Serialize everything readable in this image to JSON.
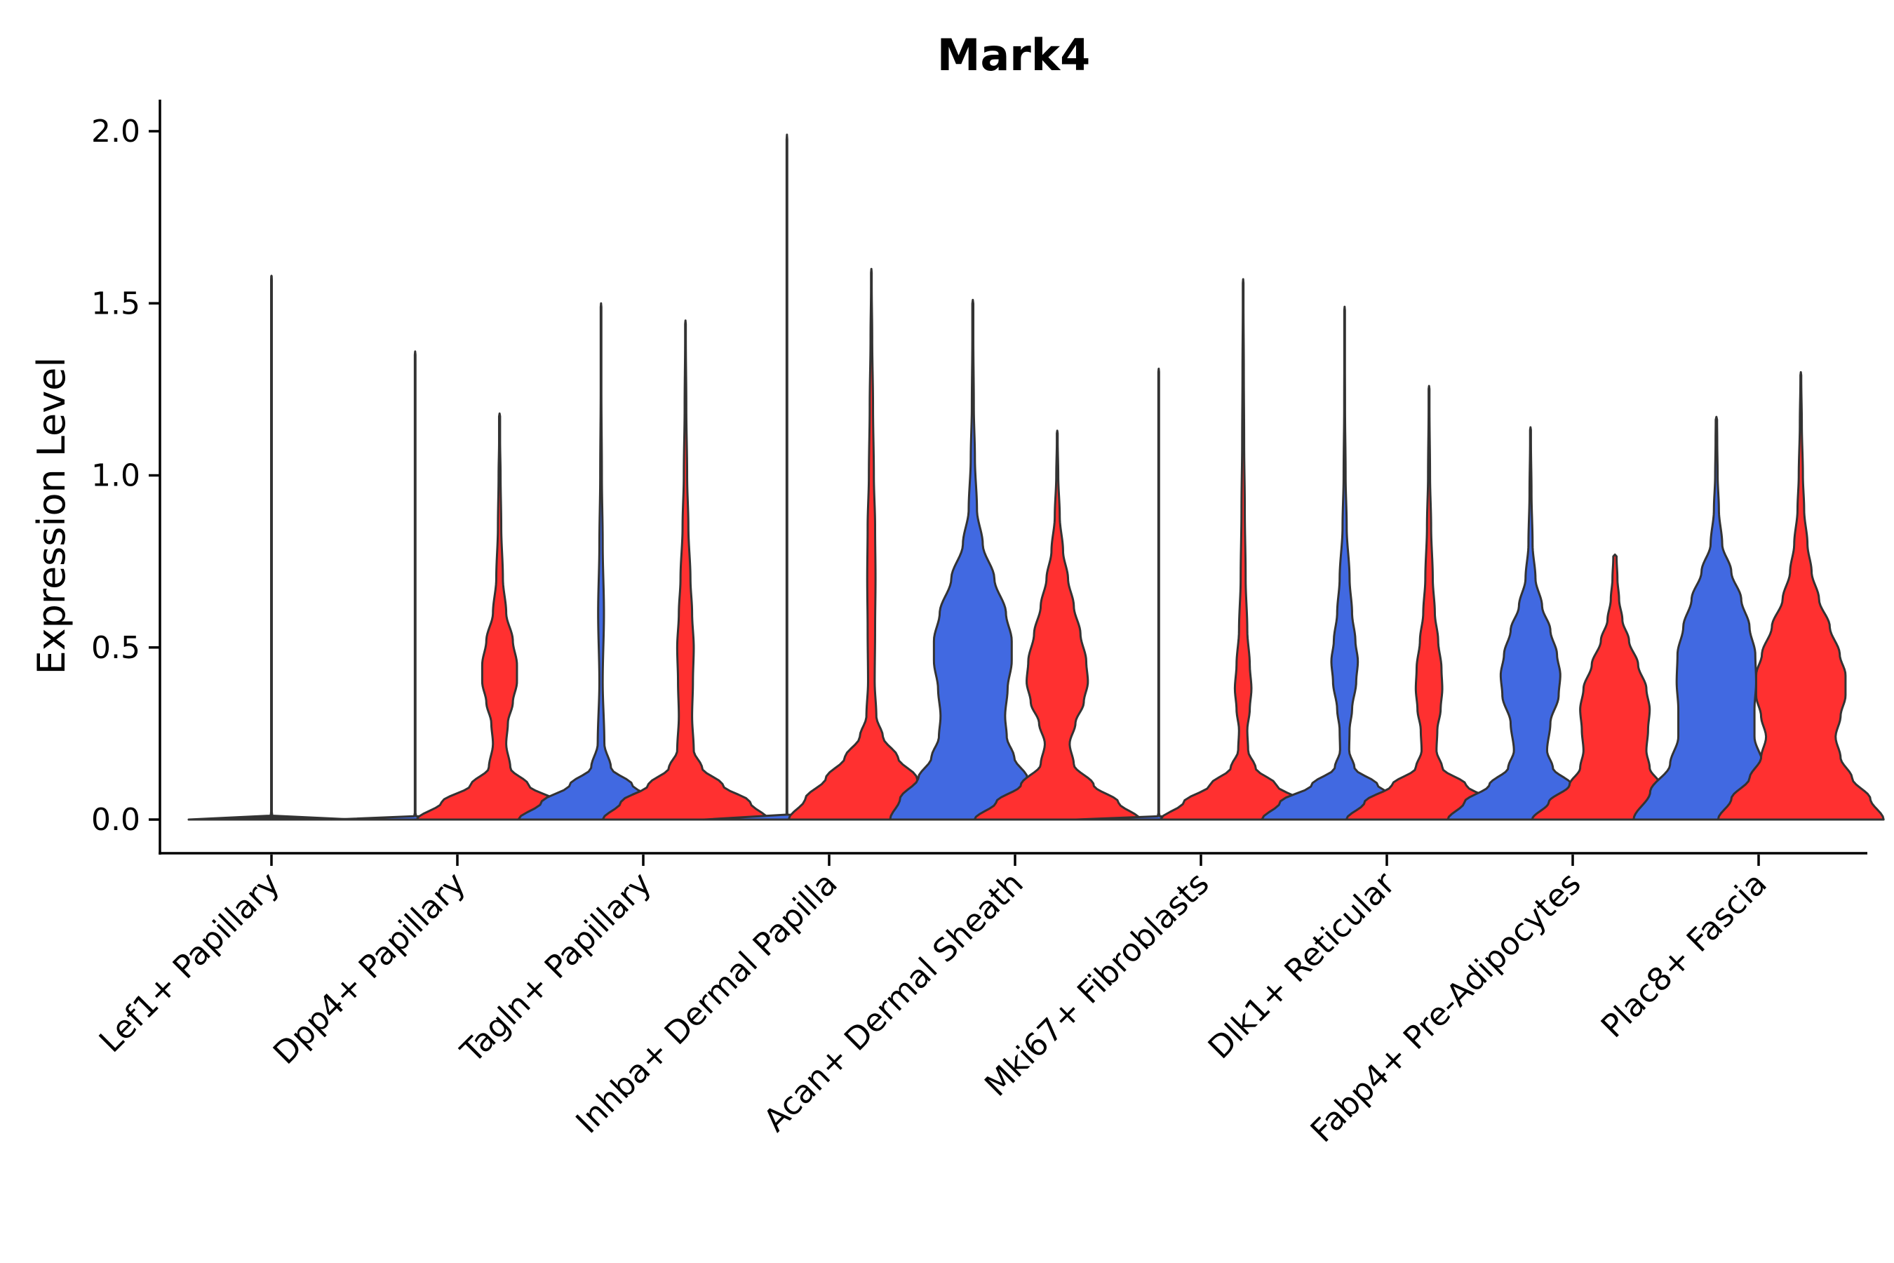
{
  "chart_data": {
    "type": "violin",
    "title": "Mark4",
    "xlabel": "",
    "ylabel": "Expression Level",
    "ylim": [
      -0.1,
      2.1
    ],
    "yticks": [
      "0.0",
      "0.5",
      "1.0",
      "1.5",
      "2.0"
    ],
    "ytick_values": [
      0,
      0.5,
      1.0,
      1.5,
      2.0
    ],
    "grid": false,
    "legend": "none",
    "categories": [
      "Lef1+ Papillary",
      "Dpp4+ Papillary",
      "Tagln+ Papillary",
      "Inhba+ Dermal Papilla",
      "Acan+ Dermal Sheath",
      "Mki67+ Fibroblasts",
      "Dlk1+ Reticular",
      "Fabp4+ Pre-Adipocytes",
      "Plac8+ Fascia"
    ],
    "colors": {
      "blue": "#4169e1",
      "red": "#ff3030",
      "outline": "#333333"
    },
    "series": [
      {
        "name": "blue",
        "color": "#4169e1",
        "max": [
          1.58,
          1.36,
          1.5,
          1.99,
          1.51,
          1.31,
          1.49,
          1.14,
          1.17
        ],
        "profiles": [
          [
            [
              0,
              1
            ],
            [
              0.005,
              0.015
            ],
            [
              0.02,
              0
            ]
          ],
          [
            [
              0,
              1
            ],
            [
              0.005,
              0.015
            ],
            [
              0.02,
              0
            ]
          ],
          [
            [
              0,
              1
            ],
            [
              0.05,
              0.72
            ],
            [
              0.1,
              0.38
            ],
            [
              0.15,
              0.12
            ],
            [
              0.22,
              0.04
            ],
            [
              0.4,
              0.02
            ],
            [
              0.6,
              0.035
            ],
            [
              0.8,
              0.02
            ],
            [
              1.0,
              0.01
            ],
            [
              1.25,
              0.004
            ]
          ],
          [
            [
              0,
              1
            ],
            [
              0.005,
              0.015
            ],
            [
              0.02,
              0
            ]
          ],
          [
            [
              0,
              1
            ],
            [
              0.06,
              0.88
            ],
            [
              0.12,
              0.66
            ],
            [
              0.18,
              0.5
            ],
            [
              0.24,
              0.41
            ],
            [
              0.3,
              0.39
            ],
            [
              0.38,
              0.42
            ],
            [
              0.46,
              0.47
            ],
            [
              0.52,
              0.47
            ],
            [
              0.6,
              0.4
            ],
            [
              0.7,
              0.26
            ],
            [
              0.8,
              0.12
            ],
            [
              0.9,
              0.05
            ],
            [
              1.05,
              0.025
            ],
            [
              1.2,
              0.012
            ],
            [
              1.4,
              0.006
            ]
          ],
          [
            [
              0,
              1
            ],
            [
              0.005,
              0.015
            ],
            [
              0.02,
              0
            ]
          ],
          [
            [
              0,
              1
            ],
            [
              0.05,
              0.78
            ],
            [
              0.1,
              0.4
            ],
            [
              0.15,
              0.12
            ],
            [
              0.2,
              0.055
            ],
            [
              0.26,
              0.06
            ],
            [
              0.32,
              0.09
            ],
            [
              0.4,
              0.14
            ],
            [
              0.46,
              0.16
            ],
            [
              0.52,
              0.13
            ],
            [
              0.6,
              0.09
            ],
            [
              0.7,
              0.06
            ],
            [
              0.85,
              0.025
            ],
            [
              1.0,
              0.012
            ],
            [
              1.2,
              0.005
            ],
            [
              1.4,
              0.003
            ]
          ],
          [
            [
              0,
              1
            ],
            [
              0.05,
              0.8
            ],
            [
              0.1,
              0.5
            ],
            [
              0.15,
              0.27
            ],
            [
              0.2,
              0.2
            ],
            [
              0.28,
              0.24
            ],
            [
              0.36,
              0.34
            ],
            [
              0.42,
              0.36
            ],
            [
              0.48,
              0.32
            ],
            [
              0.55,
              0.24
            ],
            [
              0.62,
              0.14
            ],
            [
              0.7,
              0.06
            ],
            [
              0.8,
              0.025
            ],
            [
              0.95,
              0.012
            ],
            [
              1.1,
              0.005
            ]
          ],
          [
            [
              0,
              1
            ],
            [
              0.08,
              0.8
            ],
            [
              0.16,
              0.56
            ],
            [
              0.24,
              0.46
            ],
            [
              0.32,
              0.46
            ],
            [
              0.4,
              0.48
            ],
            [
              0.48,
              0.47
            ],
            [
              0.56,
              0.4
            ],
            [
              0.64,
              0.3
            ],
            [
              0.72,
              0.18
            ],
            [
              0.8,
              0.07
            ],
            [
              0.9,
              0.03
            ],
            [
              1.0,
              0.015
            ],
            [
              1.1,
              0.01
            ],
            [
              1.16,
              0.008
            ]
          ]
        ]
      },
      {
        "name": "red",
        "color": "#ff3030",
        "max": [
          null,
          1.18,
          1.45,
          1.6,
          1.13,
          1.57,
          1.26,
          0.77,
          1.3
        ],
        "profiles": [
          null,
          [
            [
              0,
              1
            ],
            [
              0.05,
              0.7
            ],
            [
              0.1,
              0.35
            ],
            [
              0.15,
              0.13
            ],
            [
              0.22,
              0.08
            ],
            [
              0.28,
              0.1
            ],
            [
              0.34,
              0.16
            ],
            [
              0.4,
              0.21
            ],
            [
              0.45,
              0.21
            ],
            [
              0.52,
              0.16
            ],
            [
              0.6,
              0.08
            ],
            [
              0.7,
              0.04
            ],
            [
              0.85,
              0.02
            ],
            [
              1.0,
              0.012
            ],
            [
              1.1,
              0.006
            ]
          ],
          [
            [
              0,
              1
            ],
            [
              0.05,
              0.78
            ],
            [
              0.1,
              0.45
            ],
            [
              0.15,
              0.2
            ],
            [
              0.2,
              0.1
            ],
            [
              0.3,
              0.08
            ],
            [
              0.4,
              0.09
            ],
            [
              0.5,
              0.1
            ],
            [
              0.6,
              0.08
            ],
            [
              0.7,
              0.06
            ],
            [
              0.85,
              0.035
            ],
            [
              1.0,
              0.02
            ],
            [
              1.2,
              0.01
            ],
            [
              1.4,
              0.004
            ]
          ],
          [
            [
              0,
              1
            ],
            [
              0.06,
              0.8
            ],
            [
              0.12,
              0.55
            ],
            [
              0.18,
              0.32
            ],
            [
              0.24,
              0.14
            ],
            [
              0.3,
              0.06
            ],
            [
              0.4,
              0.04
            ],
            [
              0.55,
              0.045
            ],
            [
              0.7,
              0.05
            ],
            [
              0.85,
              0.045
            ],
            [
              1.0,
              0.03
            ],
            [
              1.2,
              0.02
            ],
            [
              1.4,
              0.01
            ],
            [
              1.55,
              0.004
            ]
          ],
          [
            [
              0,
              1
            ],
            [
              0.05,
              0.74
            ],
            [
              0.1,
              0.44
            ],
            [
              0.16,
              0.2
            ],
            [
              0.22,
              0.15
            ],
            [
              0.28,
              0.22
            ],
            [
              0.34,
              0.32
            ],
            [
              0.4,
              0.37
            ],
            [
              0.46,
              0.35
            ],
            [
              0.54,
              0.28
            ],
            [
              0.62,
              0.2
            ],
            [
              0.7,
              0.13
            ],
            [
              0.78,
              0.07
            ],
            [
              0.88,
              0.03
            ],
            [
              1.0,
              0.012
            ],
            [
              1.1,
              0.005
            ]
          ],
          [
            [
              0,
              1
            ],
            [
              0.05,
              0.72
            ],
            [
              0.1,
              0.4
            ],
            [
              0.15,
              0.15
            ],
            [
              0.2,
              0.06
            ],
            [
              0.26,
              0.05
            ],
            [
              0.32,
              0.08
            ],
            [
              0.38,
              0.1
            ],
            [
              0.45,
              0.08
            ],
            [
              0.55,
              0.05
            ],
            [
              0.7,
              0.03
            ],
            [
              0.9,
              0.02
            ],
            [
              1.1,
              0.012
            ],
            [
              1.3,
              0.008
            ],
            [
              1.5,
              0.004
            ]
          ],
          [
            [
              0,
              1
            ],
            [
              0.05,
              0.78
            ],
            [
              0.1,
              0.45
            ],
            [
              0.15,
              0.16
            ],
            [
              0.2,
              0.09
            ],
            [
              0.26,
              0.1
            ],
            [
              0.32,
              0.14
            ],
            [
              0.38,
              0.16
            ],
            [
              0.44,
              0.15
            ],
            [
              0.52,
              0.11
            ],
            [
              0.6,
              0.07
            ],
            [
              0.7,
              0.045
            ],
            [
              0.85,
              0.025
            ],
            [
              1.0,
              0.012
            ],
            [
              1.2,
              0.005
            ]
          ],
          [
            [
              0,
              1
            ],
            [
              0.05,
              0.8
            ],
            [
              0.1,
              0.55
            ],
            [
              0.15,
              0.42
            ],
            [
              0.2,
              0.38
            ],
            [
              0.26,
              0.4
            ],
            [
              0.32,
              0.42
            ],
            [
              0.38,
              0.38
            ],
            [
              0.45,
              0.28
            ],
            [
              0.52,
              0.17
            ],
            [
              0.58,
              0.09
            ],
            [
              0.64,
              0.05
            ],
            [
              0.7,
              0.03
            ],
            [
              0.76,
              0.02
            ]
          ],
          [
            [
              0,
              1
            ],
            [
              0.06,
              0.84
            ],
            [
              0.12,
              0.62
            ],
            [
              0.18,
              0.48
            ],
            [
              0.24,
              0.42
            ],
            [
              0.3,
              0.48
            ],
            [
              0.36,
              0.54
            ],
            [
              0.42,
              0.54
            ],
            [
              0.48,
              0.47
            ],
            [
              0.56,
              0.35
            ],
            [
              0.64,
              0.22
            ],
            [
              0.72,
              0.13
            ],
            [
              0.8,
              0.08
            ],
            [
              0.9,
              0.04
            ],
            [
              1.0,
              0.025
            ],
            [
              1.15,
              0.012
            ],
            [
              1.28,
              0.005
            ]
          ]
        ]
      }
    ]
  }
}
